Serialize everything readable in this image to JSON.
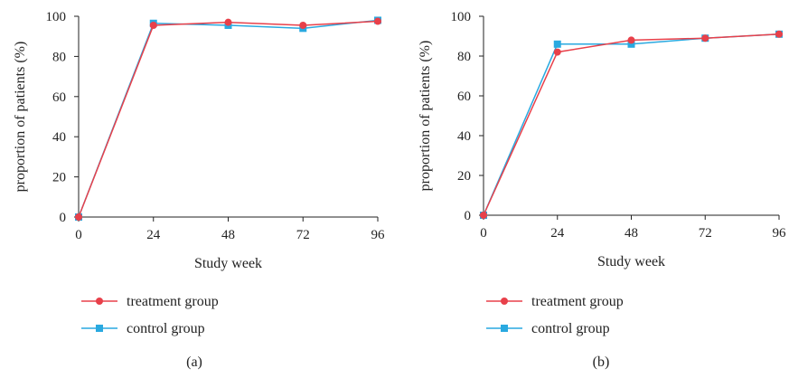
{
  "colors": {
    "treatment": "#e8404a",
    "control": "#29a9e0"
  },
  "chart_data": [
    {
      "type": "line",
      "panel_label": "(a)",
      "xlabel": "Study week",
      "ylabel": "proportion of patients (%)",
      "x": [
        0,
        24,
        48,
        72,
        96
      ],
      "xticks": [
        "0",
        "24",
        "48",
        "72",
        "96"
      ],
      "yticks": [
        "0",
        "20",
        "40",
        "60",
        "80",
        "100"
      ],
      "xlim": [
        0,
        96
      ],
      "ylim": [
        0,
        100
      ],
      "grid": false,
      "legend_position": "bottom-left",
      "series": [
        {
          "name": "treatment group",
          "marker": "circle",
          "values": [
            0,
            95.5,
            97.0,
            95.5,
            97.5
          ]
        },
        {
          "name": "control group",
          "marker": "square",
          "values": [
            0,
            96.5,
            95.5,
            94.0,
            98.0
          ]
        }
      ]
    },
    {
      "type": "line",
      "panel_label": "(b)",
      "xlabel": "Study week",
      "ylabel": "proportion of patients (%)",
      "x": [
        0,
        24,
        48,
        72,
        96
      ],
      "xticks": [
        "0",
        "24",
        "48",
        "72",
        "96"
      ],
      "yticks": [
        "0",
        "20",
        "40",
        "60",
        "80",
        "100"
      ],
      "xlim": [
        0,
        96
      ],
      "ylim": [
        0,
        100
      ],
      "grid": false,
      "legend_position": "bottom-left",
      "series": [
        {
          "name": "treatment group",
          "marker": "circle",
          "values": [
            0,
            82.0,
            88.0,
            89.0,
            91.0
          ]
        },
        {
          "name": "control group",
          "marker": "square",
          "values": [
            0,
            86.0,
            86.0,
            89.0,
            91.0
          ]
        }
      ]
    }
  ]
}
